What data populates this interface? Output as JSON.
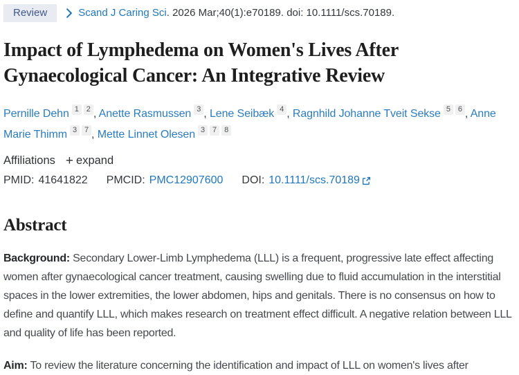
{
  "header": {
    "pub_type": "Review",
    "journal": "Scand J Caring Sci",
    "citation_rest": ". 2026 Mar;40(1):e70189. doi: 10.1111/scs.70189."
  },
  "title": "Impact of Lymphedema on Women's Lives After Gynaecological Cancer: An Integrative Review",
  "authors": [
    {
      "name": "Pernille Dehn",
      "sups": [
        "1",
        "2"
      ]
    },
    {
      "name": "Anette Rasmussen",
      "sups": [
        "3"
      ]
    },
    {
      "name": "Lene Seibæk",
      "sups": [
        "4"
      ]
    },
    {
      "name": "Ragnhild Johanne Tveit Sekse",
      "sups": [
        "5",
        "6"
      ]
    },
    {
      "name": "Anne Marie Thimm",
      "sups": [
        "3",
        "7"
      ]
    },
    {
      "name": "Mette Linnet Olesen",
      "sups": [
        "3",
        "7",
        "8"
      ]
    }
  ],
  "affiliations": {
    "label": "Affiliations",
    "plus_icon": "+",
    "expand_label": "expand"
  },
  "identifiers": {
    "pmid_label": "PMID:",
    "pmid": "41641822",
    "pmcid_label": "PMCID:",
    "pmcid": "PMC12907600",
    "doi_label": "DOI:",
    "doi": "10.1111/scs.70189"
  },
  "abstract": {
    "heading": "Abstract",
    "sections": [
      {
        "label": "Background:",
        "text": "Secondary Lower-Limb Lymphedema (LLL) is a frequent, progressive late effect affecting women after gynaecological cancer treatment, causing swelling due to fluid accumulation in the interstitial spaces in the lower extremities, the lower abdomen, hips and genitals. There is no consensus on how to define and quantify LLL, which makes research on treatment effect difficult. A negative relation between LLL and quality of life has been reported."
      },
      {
        "label": "Aim:",
        "text": "To review the literature concerning the identification and impact of LLL on women's lives after"
      }
    ]
  },
  "colors": {
    "link_blue": "#2077bd",
    "badge_bg": "#e8ebf1",
    "badge_text": "#41598a",
    "sup_bg": "#f0f0f0",
    "title_text": "#1e1e1f"
  }
}
